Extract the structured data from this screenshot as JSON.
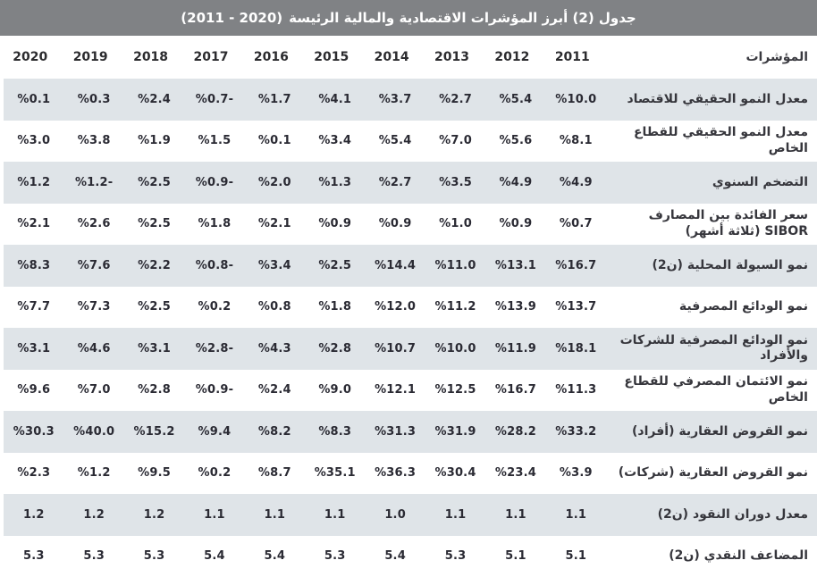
{
  "title": {
    "text": "جدول (2) أبرز المؤشرات الاقتصادية والمالية الرئيسة",
    "range": "(2011 - 2020)"
  },
  "table": {
    "indicator_header": "المؤشرات",
    "years": [
      "2011",
      "2012",
      "2013",
      "2014",
      "2015",
      "2016",
      "2017",
      "2018",
      "2019",
      "2020"
    ],
    "rows": [
      {
        "label": "معدل النمو الحقيقي للاقتصاد",
        "values": [
          "%10.0",
          "%5.4",
          "%2.7",
          "%3.7",
          "%4.1",
          "%1.7",
          "%0.7-",
          "%2.4",
          "%0.3",
          "%0.1"
        ]
      },
      {
        "label": "معدل النمو الحقيقي للقطاع الخاص",
        "values": [
          "%8.1",
          "%5.6",
          "%7.0",
          "%5.4",
          "%3.4",
          "%0.1",
          "%1.5",
          "%1.9",
          "%3.8",
          "%3.0"
        ]
      },
      {
        "label": "التضخم السنوي",
        "values": [
          "%4.9",
          "%4.9",
          "%3.5",
          "%2.7",
          "%1.3",
          "%2.0",
          "%0.9-",
          "%2.5",
          "%1.2-",
          "%1.2"
        ]
      },
      {
        "label": "سعر الفائدة بين المصارف SIBOR (ثلاثة أشهر)",
        "values": [
          "%0.7",
          "%0.9",
          "%1.0",
          "%0.9",
          "%0.9",
          "%2.1",
          "%1.8",
          "%2.5",
          "%2.6",
          "%2.1"
        ]
      },
      {
        "label": "نمو السيولة المحلية (ن2)",
        "values": [
          "%16.7",
          "%13.1",
          "%11.0",
          "%14.4",
          "%2.5",
          "%3.4",
          "%0.8-",
          "%2.2",
          "%7.6",
          "%8.3"
        ]
      },
      {
        "label": "نمو الودائع المصرفية",
        "values": [
          "%13.7",
          "%13.9",
          "%11.2",
          "%12.0",
          "%1.8",
          "%0.8",
          "%0.2",
          "%2.5",
          "%7.3",
          "%7.7"
        ]
      },
      {
        "label": "نمو الودائع المصرفية للشركات والأفراد",
        "values": [
          "%18.1",
          "%11.9",
          "%10.0",
          "%10.7",
          "%2.8",
          "%4.3",
          "%2.8-",
          "%3.1",
          "%4.6",
          "%3.1"
        ]
      },
      {
        "label": "نمو الائتمان المصرفي للقطاع الخاص",
        "values": [
          "%11.3",
          "%16.7",
          "%12.5",
          "%12.1",
          "%9.0",
          "%2.4",
          "%0.9-",
          "%2.8",
          "%7.0",
          "%9.6"
        ]
      },
      {
        "label": "نمو القروض العقارية (أفراد)",
        "values": [
          "%33.2",
          "%28.2",
          "%31.9",
          "%31.3",
          "%8.3",
          "%8.2",
          "%9.4",
          "%15.2",
          "%40.0",
          "%30.3"
        ]
      },
      {
        "label": "نمو القروض العقارية (شركات)",
        "values": [
          "%3.9",
          "%23.4",
          "%30.4",
          "%36.3",
          "%35.1",
          "%8.7",
          "%0.2",
          "%9.5",
          "%1.2",
          "%2.3"
        ]
      },
      {
        "label": "معدل دوران النقود (ن2)",
        "values": [
          "1.1",
          "1.1",
          "1.1",
          "1.0",
          "1.1",
          "1.1",
          "1.1",
          "1.2",
          "1.2",
          "1.2"
        ]
      },
      {
        "label": "المضاعف النقدي (ن2)",
        "values": [
          "5.1",
          "5.1",
          "5.3",
          "5.4",
          "5.3",
          "5.4",
          "5.4",
          "5.3",
          "5.3",
          "5.3"
        ]
      }
    ]
  },
  "colors": {
    "title_bar_bg": "#808285",
    "title_text": "#ffffff",
    "alt_row_bg": "#dfe4e8",
    "value_text": "#2a2a33"
  }
}
